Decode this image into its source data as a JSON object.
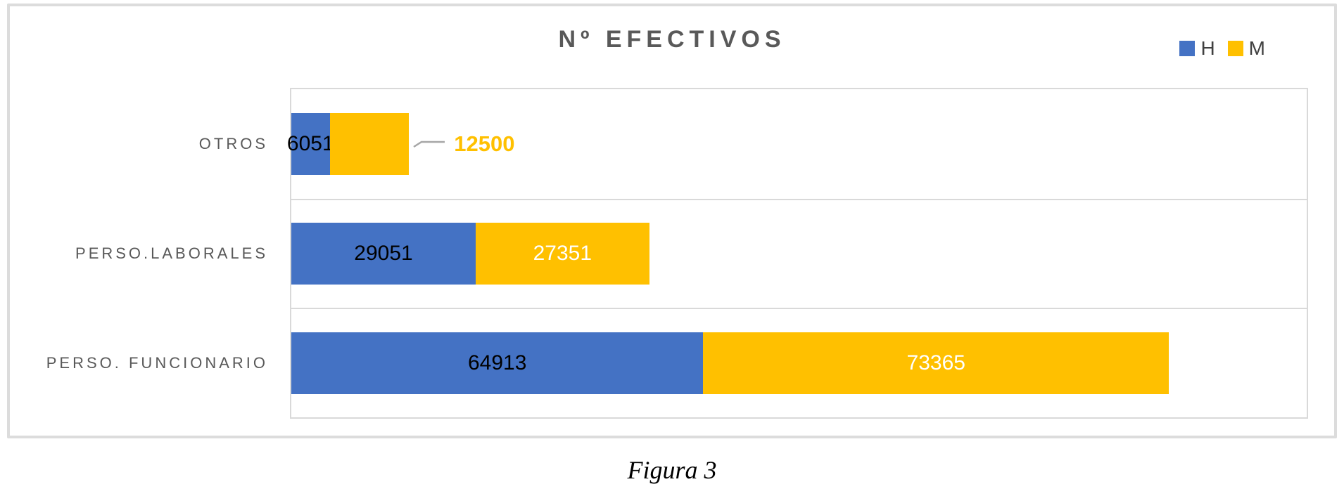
{
  "chart_data": {
    "type": "bar",
    "orientation": "horizontal",
    "stacked": true,
    "title": "Nº EFECTIVOS",
    "categories": [
      "OTROS",
      "PERSO.LABORALES",
      "PERSO. FUNCIONARIO"
    ],
    "series": [
      {
        "name": "H",
        "color": "#4472C4",
        "label_color": "#000000",
        "values": [
          6051,
          29051,
          64913
        ]
      },
      {
        "name": "M",
        "color": "#FFC000",
        "label_color": "#FFFFFF",
        "values": [
          12500,
          27351,
          73365
        ]
      }
    ],
    "xlim": [
      0,
      160000
    ],
    "legend_position": "top-right",
    "gridlines": "category-separators-horizontal",
    "value_labels": "inside-center",
    "moved_labels": [
      {
        "category": "OTROS",
        "series": "M",
        "placement": "outside-right",
        "color": "#FFC000",
        "leader_color": "#A6A6A6"
      }
    ]
  },
  "caption": "Figura 3",
  "colors": {
    "card_border": "#DCDCDC",
    "plot_border": "#D9D9D9",
    "title_text": "#595959",
    "category_text": "#595959",
    "legend_text": "#404040"
  }
}
